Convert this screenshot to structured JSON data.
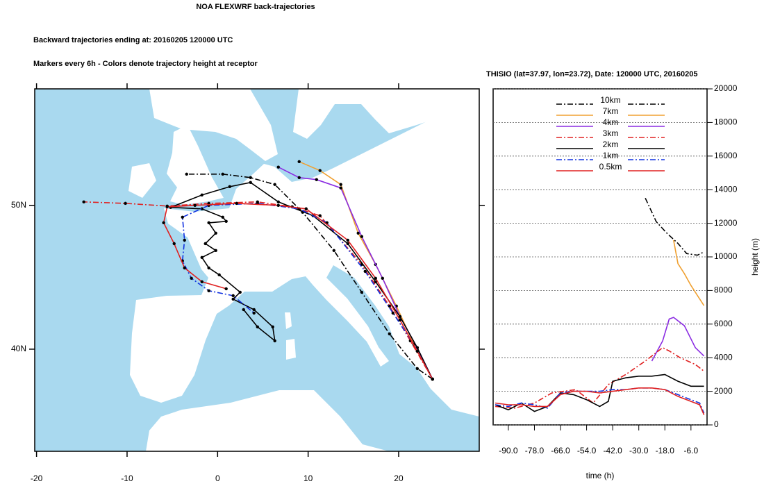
{
  "chart_data": [
    {
      "type": "trajectory",
      "title": "NOA FLEXWRF back-trajectories",
      "subtitle": "Backward trajectories ending at: 20160205  120000 UTC",
      "annotation": "Markers every 6h - Colors denote trajectory height at receptor",
      "xlim": [
        -20.2,
        28.9
      ],
      "ylim": [
        32.9,
        58.1
      ],
      "xticks": [
        -20,
        -10,
        0,
        10,
        20
      ],
      "yticks": [
        {
          "value": 40,
          "label": "40N"
        },
        {
          "value": 50,
          "label": "50N"
        }
      ],
      "series": [
        {
          "color": "#000000",
          "dash": "dashdot",
          "x": [
            23.74,
            22.06,
            18.99,
            15.92,
            12.85,
            9.39,
            6.32,
            3.64,
            0.57,
            -3.42
          ],
          "values": [
            37.92,
            38.65,
            41.06,
            43.96,
            46.86,
            49.52,
            51.45,
            51.93,
            52.17,
            52.17
          ]
        },
        {
          "color": "#f0a030",
          "dash": "solid",
          "x": [
            23.74,
            22.06,
            19.75,
            17.45,
            15.53,
            13.61,
            11.31,
            9.01
          ],
          "values": [
            37.92,
            39.86,
            43.0,
            45.89,
            48.07,
            51.45,
            52.42,
            53.04
          ]
        },
        {
          "color": "#8a2be2",
          "dash": "solid",
          "x": [
            23.74,
            22.06,
            20.14,
            18.22,
            15.92,
            13.61,
            10.93,
            9.01,
            6.71
          ],
          "values": [
            37.92,
            40.1,
            42.27,
            44.93,
            47.83,
            51.21,
            51.79,
            51.93,
            52.66
          ]
        },
        {
          "color": "#e02020",
          "dash": "dashdot",
          "x": [
            23.74,
            21.29,
            18.99,
            15.92,
            11.31,
            8.24,
            4.41,
            -0.97,
            -5.57,
            -10.18,
            -14.78
          ],
          "values": [
            37.92,
            40.58,
            43.0,
            45.89,
            49.28,
            49.9,
            50.24,
            50.14,
            49.95,
            50.14,
            50.24
          ]
        },
        {
          "color": "#000000",
          "dash": "solid",
          "x": [
            23.74,
            22.06,
            20.14,
            17.45,
            14.38,
            10.55,
            6.71,
            3.64,
            1.34,
            -1.73,
            -5.19,
            -1.73,
            0.57,
            0.95,
            -0.97,
            -0.2,
            -1.35,
            -0.2,
            -1.73,
            -0.97,
            0.18,
            2.49,
            1.72,
            4.02,
            6.09,
            6.32,
            4.41,
            2.87
          ],
          "values": [
            37.92,
            40.1,
            42.27,
            44.69,
            47.34,
            49.28,
            50.24,
            51.59,
            51.3,
            50.72,
            49.86,
            49.76,
            49.18,
            48.89,
            48.79,
            48.07,
            47.34,
            46.86,
            46.38,
            45.65,
            45.17,
            43.96,
            43.48,
            42.75,
            41.55,
            40.58,
            41.55,
            42.75
          ]
        },
        {
          "color": "#1030e0",
          "dash": "dashdot",
          "x": [
            23.74,
            21.67,
            19.37,
            16.3,
            12.08,
            9.01,
            4.41,
            -0.97,
            -3.88,
            -3.65,
            -3.88,
            -2.89,
            -0.97,
            1.72,
            4.02
          ],
          "values": [
            37.92,
            40.34,
            42.51,
            45.41,
            48.79,
            49.76,
            50.14,
            50.0,
            49.18,
            47.58,
            46.14,
            44.93,
            44.06,
            43.72,
            42.51
          ]
        },
        {
          "color": "#e02020",
          "dash": "solid",
          "x": [
            23.74,
            22.06,
            20.14,
            17.45,
            14.38,
            9.78,
            6.71,
            2.1,
            -2.5,
            -5.57,
            -5.96,
            -4.8,
            -3.65,
            -1.73,
            0.95
          ],
          "values": [
            37.92,
            39.86,
            42.03,
            44.93,
            47.58,
            49.76,
            50.0,
            50.14,
            50.0,
            49.9,
            48.79,
            47.34,
            45.65,
            44.69,
            44.2
          ]
        }
      ]
    },
    {
      "type": "line",
      "title": "THISIO (lat=37.97,  lon=23.72), Date: 120000 UTC, 20160205",
      "xlabel": "time (h)",
      "ylabel": "height (m)",
      "xlim": [
        -97,
        1.4
      ],
      "ylim": [
        0,
        20000
      ],
      "xticks": [
        {
          "value": -90,
          "label": "-90.0"
        },
        {
          "value": -78,
          "label": "-78.0"
        },
        {
          "value": -66,
          "label": "-66.0"
        },
        {
          "value": -54,
          "label": "-54.0"
        },
        {
          "value": -42,
          "label": "-42.0"
        },
        {
          "value": -30,
          "label": "-30.0"
        },
        {
          "value": -18,
          "label": "-18.0"
        },
        {
          "value": -6,
          "label": "-6.0"
        }
      ],
      "yticks": [
        0,
        2000,
        4000,
        6000,
        8000,
        10000,
        12000,
        14000,
        16000,
        18000,
        20000
      ],
      "grid": true,
      "legend": "upper center",
      "series": [
        {
          "name": "10km",
          "color": "#000000",
          "dash": "dashdot",
          "x": [
            -27,
            -22,
            -17,
            -12,
            -8,
            -3,
            0
          ],
          "values": [
            13500,
            12100,
            11400,
            10800,
            10200,
            10100,
            10300
          ]
        },
        {
          "name": "7km",
          "color": "#f0a030",
          "dash": "solid",
          "x": [
            -14,
            -12,
            -9,
            -6,
            -3,
            0
          ],
          "values": [
            11000,
            9600,
            9000,
            8300,
            7700,
            7100
          ]
        },
        {
          "name": "4km",
          "color": "#8a2be2",
          "dash": "solid",
          "x": [
            -24,
            -19,
            -16,
            -14,
            -9,
            -4,
            0
          ],
          "values": [
            3800,
            5000,
            6300,
            6400,
            5900,
            4600,
            4100
          ]
        },
        {
          "name": "3km",
          "color": "#e02020",
          "dash": "dashdot",
          "x": [
            -96,
            -87,
            -78,
            -70,
            -59,
            -51,
            -44,
            -36,
            -27,
            -19,
            -16,
            -11,
            -4,
            0
          ],
          "values": [
            1100,
            1000,
            1300,
            1900,
            2100,
            1300,
            2400,
            3000,
            3800,
            4600,
            4400,
            4000,
            3600,
            3200
          ]
        },
        {
          "name": "2km",
          "color": "#000000",
          "dash": "solid",
          "x": [
            -96,
            -90,
            -84,
            -78,
            -72,
            -66,
            -60,
            -54,
            -48,
            -44,
            -42,
            -36,
            -30,
            -24,
            -18,
            -12,
            -6,
            0
          ],
          "values": [
            1200,
            900,
            1300,
            800,
            1100,
            1900,
            1800,
            1500,
            1100,
            1400,
            2600,
            2800,
            2900,
            2900,
            3000,
            2600,
            2300,
            2300
          ]
        },
        {
          "name": "1km",
          "color": "#1030e0",
          "dash": "dashdot",
          "x": [
            -96,
            -90,
            -84,
            -78,
            -72,
            -66,
            -60,
            -54,
            -48,
            -42,
            -36,
            -30,
            -24,
            -18,
            -12,
            -6,
            -2,
            0
          ],
          "values": [
            1200,
            1100,
            1300,
            1200,
            1000,
            1900,
            2000,
            2000,
            2000,
            2100,
            2100,
            2200,
            2200,
            2100,
            1800,
            1500,
            1300,
            700
          ]
        },
        {
          "name": "0.5km",
          "color": "#e02020",
          "dash": "solid",
          "x": [
            -96,
            -90,
            -84,
            -78,
            -72,
            -66,
            -60,
            -54,
            -48,
            -42,
            -36,
            -30,
            -24,
            -18,
            -12,
            -6,
            -2,
            0
          ],
          "values": [
            1300,
            1200,
            1200,
            1100,
            1100,
            1800,
            2000,
            2000,
            1900,
            2000,
            2100,
            2200,
            2200,
            2100,
            1700,
            1400,
            1200,
            600
          ]
        }
      ]
    }
  ]
}
